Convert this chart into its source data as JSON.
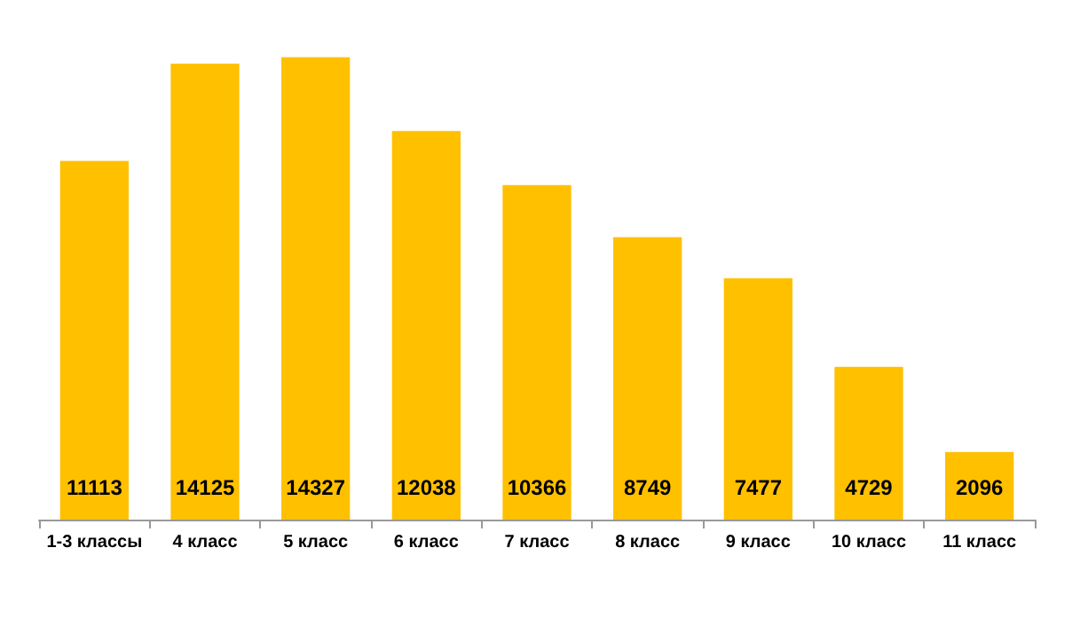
{
  "chart_data": {
    "type": "bar",
    "categories": [
      "1-3 классы",
      "4 класс",
      "5 класс",
      "6 класс",
      "7 класс",
      "8 класс",
      "9 класс",
      "10 класс",
      "11 класс"
    ],
    "values": [
      11113,
      14125,
      14327,
      12038,
      10366,
      8749,
      7477,
      4729,
      2096
    ],
    "color": "#ffc000",
    "data_labels": true
  }
}
